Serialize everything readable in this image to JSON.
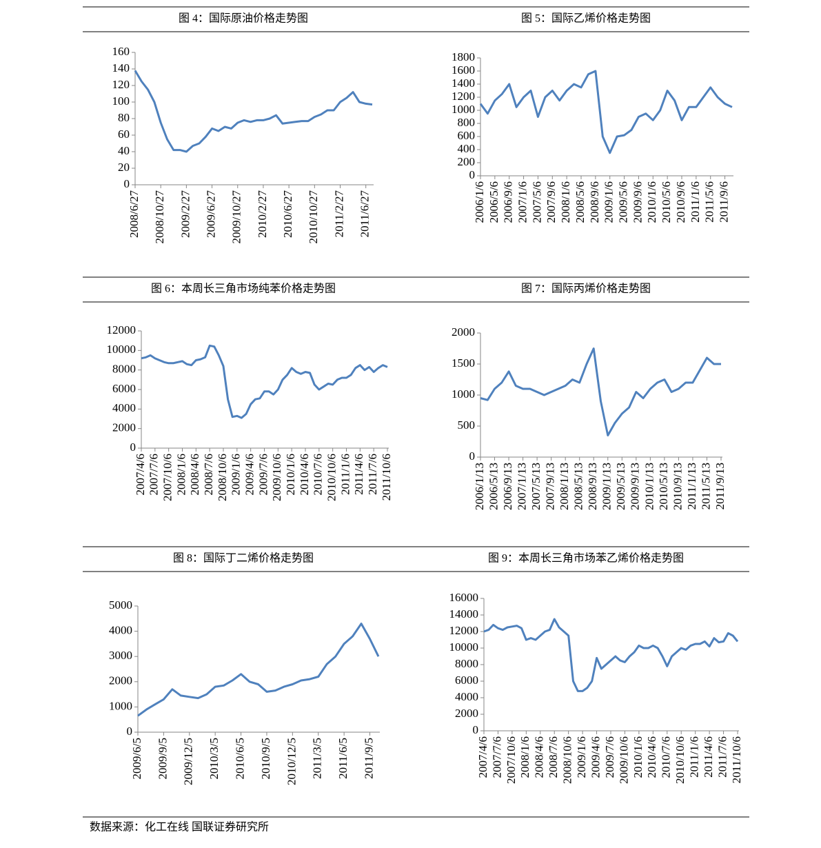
{
  "chart_data": [
    {
      "type": "line",
      "title": "图 4：国际原油价格走势图",
      "color": "#4f81bd",
      "ylim": [
        0,
        160
      ],
      "yticks": [
        0,
        20,
        40,
        60,
        80,
        100,
        120,
        140,
        160
      ],
      "categories": [
        "2008/6/27",
        null,
        null,
        null,
        "2008/10/27",
        null,
        null,
        null,
        "2009/2/27",
        null,
        null,
        null,
        "2009/6/27",
        null,
        null,
        null,
        "2009/10/27",
        null,
        null,
        null,
        "2010/2/27",
        null,
        null,
        null,
        "2010/6/27",
        null,
        null,
        null,
        "2010/10/27",
        null,
        null,
        null,
        "2011/2/27",
        null,
        null,
        null,
        "2011/6/27",
        null
      ],
      "values": [
        138,
        125,
        115,
        100,
        75,
        55,
        42,
        42,
        40,
        47,
        50,
        58,
        68,
        65,
        70,
        68,
        75,
        78,
        76,
        78,
        78,
        80,
        84,
        74,
        75,
        76,
        77,
        77,
        82,
        85,
        90,
        90,
        100,
        105,
        112,
        100,
        98,
        97
      ]
    },
    {
      "type": "line",
      "title": "图 5：国际乙烯价格走势图",
      "color": "#4f81bd",
      "ylim": [
        0,
        1800
      ],
      "yticks": [
        0,
        200,
        400,
        600,
        800,
        1000,
        1200,
        1400,
        1600,
        1800
      ],
      "categories": [
        "2006/1/6",
        null,
        "2006/5/6",
        null,
        "2006/9/6",
        null,
        "2007/1/6",
        null,
        "2007/5/6",
        null,
        "2007/9/6",
        null,
        "2008/1/6",
        null,
        "2008/5/6",
        null,
        "2008/9/6",
        null,
        "2009/1/6",
        null,
        "2009/5/6",
        null,
        "2009/9/6",
        null,
        "2010/1/6",
        null,
        "2010/5/6",
        null,
        "2010/9/6",
        null,
        "2011/1/6",
        null,
        "2011/5/6",
        null,
        "2011/9/6",
        null
      ],
      "values": [
        1100,
        950,
        1150,
        1250,
        1400,
        1050,
        1200,
        1300,
        900,
        1200,
        1300,
        1150,
        1300,
        1400,
        1350,
        1550,
        1600,
        600,
        350,
        600,
        620,
        700,
        900,
        950,
        850,
        1000,
        1300,
        1150,
        850,
        1050,
        1050,
        1200,
        1350,
        1200,
        1100,
        1050
      ]
    },
    {
      "type": "line",
      "title": "图 6：本周长三角市场纯苯价格走势图",
      "color": "#4f81bd",
      "ylim": [
        0,
        12000
      ],
      "yticks": [
        0,
        2000,
        4000,
        6000,
        8000,
        10000,
        12000
      ],
      "categories": [
        "2007/4/6",
        null,
        null,
        "2007/7/6",
        null,
        null,
        "2007/10/6",
        null,
        null,
        "2008/1/6",
        null,
        null,
        "2008/4/6",
        null,
        null,
        "2008/7/6",
        null,
        null,
        "2008/10/6",
        null,
        null,
        "2009/1/6",
        null,
        null,
        "2009/4/6",
        null,
        null,
        "2009/7/6",
        null,
        null,
        "2009/10/6",
        null,
        null,
        "2010/1/6",
        null,
        null,
        "2010/4/6",
        null,
        null,
        "2010/7/6",
        null,
        null,
        "2010/10/6",
        null,
        null,
        "2011/1/6",
        null,
        null,
        "2011/4/6",
        null,
        null,
        "2011/7/6",
        null,
        null,
        "2011/10/6"
      ],
      "values": [
        9200,
        9300,
        9500,
        9200,
        9000,
        8800,
        8700,
        8700,
        8800,
        8900,
        8600,
        8500,
        9000,
        9100,
        9300,
        10500,
        10400,
        9500,
        8400,
        5000,
        3200,
        3300,
        3100,
        3500,
        4500,
        5000,
        5100,
        5800,
        5800,
        5500,
        6000,
        7000,
        7500,
        8200,
        7800,
        7600,
        7800,
        7700,
        6500,
        6000,
        6300,
        6600,
        6500,
        7000,
        7200,
        7200,
        7500,
        8200,
        8500,
        8000,
        8300,
        7800,
        8200,
        8500,
        8300
      ]
    },
    {
      "type": "line",
      "title": "图 7：国际丙烯价格走势图",
      "color": "#4f81bd",
      "ylim": [
        0,
        2000
      ],
      "yticks": [
        0,
        500,
        1000,
        1500,
        2000
      ],
      "categories": [
        "2006/1/13",
        null,
        "2006/5/13",
        null,
        "2006/9/13",
        null,
        "2007/1/13",
        null,
        "2007/5/13",
        null,
        "2007/9/13",
        null,
        "2008/1/13",
        null,
        "2008/5/13",
        null,
        "2008/9/13",
        null,
        "2009/1/13",
        null,
        "2009/5/13",
        null,
        "2009/9/13",
        null,
        "2010/1/13",
        null,
        "2010/5/13",
        null,
        "2010/9/13",
        null,
        "2011/1/13",
        null,
        "2011/5/13",
        null,
        "2011/9/13"
      ],
      "values": [
        950,
        920,
        1100,
        1200,
        1380,
        1150,
        1100,
        1100,
        1050,
        1000,
        1050,
        1100,
        1150,
        1250,
        1200,
        1500,
        1750,
        900,
        350,
        550,
        700,
        800,
        1050,
        950,
        1100,
        1200,
        1250,
        1050,
        1100,
        1200,
        1200,
        1400,
        1600,
        1500,
        1500
      ]
    },
    {
      "type": "line",
      "title": "图 8：国际丁二烯价格走势图",
      "color": "#4f81bd",
      "ylim": [
        0,
        5000
      ],
      "yticks": [
        0,
        1000,
        2000,
        3000,
        4000,
        5000
      ],
      "categories": [
        "2009/6/5",
        null,
        null,
        "2009/9/5",
        null,
        null,
        "2009/12/5",
        null,
        null,
        "2010/3/5",
        null,
        null,
        "2010/6/5",
        null,
        null,
        "2010/9/5",
        null,
        null,
        "2010/12/5",
        null,
        null,
        "2011/3/5",
        null,
        null,
        "2011/6/5",
        null,
        null,
        "2011/9/5",
        null
      ],
      "values": [
        650,
        900,
        1100,
        1300,
        1700,
        1450,
        1400,
        1350,
        1500,
        1800,
        1850,
        2050,
        2300,
        2000,
        1900,
        1600,
        1650,
        1800,
        1900,
        2050,
        2100,
        2200,
        2700,
        3000,
        3500,
        3800,
        4300,
        3700,
        3000
      ]
    },
    {
      "type": "line",
      "title": "图 9：本周长三角市场苯乙烯价格走势图",
      "color": "#4f81bd",
      "ylim": [
        0,
        16000
      ],
      "yticks": [
        0,
        2000,
        4000,
        6000,
        8000,
        10000,
        12000,
        14000,
        16000
      ],
      "categories": [
        "2007/4/6",
        null,
        null,
        "2007/7/6",
        null,
        null,
        "2007/10/6",
        null,
        null,
        "2008/1/6",
        null,
        null,
        "2008/4/6",
        null,
        null,
        "2008/7/6",
        null,
        null,
        "2008/10/6",
        null,
        null,
        "2009/1/6",
        null,
        null,
        "2009/4/6",
        null,
        null,
        "2009/7/6",
        null,
        null,
        "2009/10/6",
        null,
        null,
        "2010/1/6",
        null,
        null,
        "2010/4/6",
        null,
        null,
        "2010/7/6",
        null,
        null,
        "2010/10/6",
        null,
        null,
        "2011/1/6",
        null,
        null,
        "2011/4/6",
        null,
        null,
        "2011/7/6",
        null,
        null,
        "2011/10/6"
      ],
      "values": [
        12000,
        12200,
        12800,
        12400,
        12200,
        12500,
        12600,
        12700,
        12400,
        11000,
        11200,
        11000,
        11500,
        12000,
        12200,
        13500,
        12500,
        12000,
        11500,
        6000,
        4800,
        4800,
        5200,
        6000,
        8800,
        7500,
        8000,
        8500,
        9000,
        8500,
        8300,
        9000,
        9500,
        10300,
        10000,
        10000,
        10300,
        10000,
        9000,
        7800,
        9000,
        9500,
        10000,
        9800,
        10300,
        10500,
        10500,
        10800,
        10200,
        11200,
        10700,
        10800,
        11800,
        11500,
        10800
      ]
    }
  ],
  "source": "数据来源：化工在线 国联证券研究所"
}
